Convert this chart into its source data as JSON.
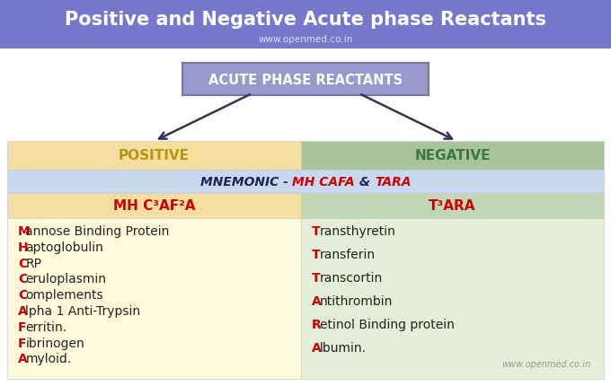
{
  "title": "Positive and Negative Acute phase Reactants",
  "title_color": "#FFFFFF",
  "title_bg": "#7777CC",
  "subtitle": "www.openmed.co.in",
  "subtitle_color": "#DDDDFF",
  "box_label": "ACUTE PHASE REACTANTS",
  "box_bg": "#9999CC",
  "box_border": "#7777AA",
  "positive_header": "POSITIVE",
  "negative_header": "NEGATIVE",
  "positive_header_bg": "#F5DFA0",
  "negative_header_bg": "#A8C49A",
  "positive_header_color": "#B8960B",
  "negative_header_color": "#3B7A3B",
  "mnemonic_bg": "#C8D8EE",
  "mnemonic_color_normal": "#222255",
  "mnemonic_color_red": "#CC0000",
  "subheader_positive_bg": "#F5DFA0",
  "subheader_negative_bg": "#C0D8B8",
  "subheader_positive_text": "MH C³AF²A",
  "subheader_negative_text": "T³ARA",
  "subheader_color": "#CC0000",
  "content_positive_bg": "#FFFADC",
  "content_negative_bg": "#E4EED8",
  "positive_items": [
    [
      "M",
      "annose Binding Protein"
    ],
    [
      "H",
      "aptoglobulin"
    ],
    [
      "C",
      "RP"
    ],
    [
      "C",
      "eruloplasmin"
    ],
    [
      "C",
      "omplements"
    ],
    [
      "A",
      "lpha 1 Anti-Trypsin"
    ],
    [
      "F",
      "erritin."
    ],
    [
      "F",
      "ibrinogen"
    ],
    [
      "A",
      "myloid."
    ]
  ],
  "negative_items": [
    [
      "T",
      "ransthyretin"
    ],
    [
      "T",
      "ransferin"
    ],
    [
      "T",
      "ranscortin"
    ],
    [
      "A",
      "ntithrombin"
    ],
    [
      "R",
      "etinol Binding protein"
    ],
    [
      "A",
      "lbumin."
    ]
  ],
  "item_color_red": "#CC0000",
  "item_color_black": "#222222",
  "watermark": "www.openmed.co.in",
  "watermark_color": "#999999",
  "fig_width": 6.8,
  "fig_height": 4.31,
  "dpi": 100
}
